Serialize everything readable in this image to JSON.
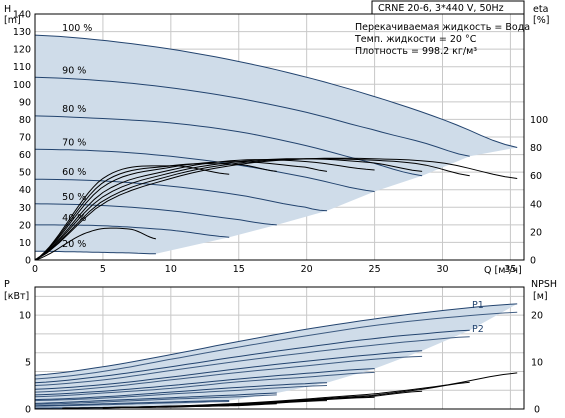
{
  "chart_data": [
    {
      "type": "line",
      "title": "CRNE 20-6, 3*440 V, 50Hz",
      "annotations": [
        "Перекачиваемая жидкость = Вода",
        "Темп. жидкости = 20 °C",
        "Плотность = 998.2 кг/м³"
      ],
      "xlabel": "Q [м³/ч]",
      "xlim": [
        0,
        36
      ],
      "xticks": [
        0,
        5,
        10,
        15,
        20,
        25,
        30,
        35
      ],
      "y_left": {
        "label_top": "H",
        "label_bottom": "[m]",
        "lim": [
          0,
          140
        ],
        "ticks": [
          0,
          10,
          20,
          30,
          40,
          50,
          60,
          70,
          80,
          90,
          100,
          110,
          120,
          130,
          140
        ]
      },
      "y_right": {
        "label_top": "eta",
        "label_bottom": "[%]",
        "lim": [
          0,
          175
        ],
        "ticks": [
          0,
          20,
          40,
          60,
          80,
          100
        ]
      },
      "grid": true,
      "speed_labels": [
        "100 %",
        "90 %",
        "80 %",
        "70 %",
        "60 %",
        "50 %",
        "40 %",
        "20 %"
      ],
      "head_curves": [
        {
          "speed": 100,
          "x": [
            0,
            5,
            10,
            15,
            20,
            25,
            30,
            35.5
          ],
          "y": [
            128,
            125,
            120,
            113,
            104,
            93,
            80,
            64
          ]
        },
        {
          "speed": 90,
          "x": [
            0,
            5,
            10,
            15,
            20,
            25,
            28.5,
            32
          ],
          "y": [
            104,
            102,
            98,
            92,
            84,
            74,
            67,
            59
          ]
        },
        {
          "speed": 80,
          "x": [
            0,
            5,
            10,
            15,
            20,
            25,
            28.5
          ],
          "y": [
            82,
            80.5,
            78,
            73,
            65,
            55,
            48
          ]
        },
        {
          "speed": 70,
          "x": [
            0,
            5,
            10,
            15,
            20,
            25
          ],
          "y": [
            63,
            62,
            59,
            54,
            47,
            39
          ]
        },
        {
          "speed": 60,
          "x": [
            0,
            5,
            10,
            15,
            20,
            21.5
          ],
          "y": [
            46,
            45,
            42,
            37,
            30,
            28
          ]
        },
        {
          "speed": 50,
          "x": [
            0,
            5,
            10,
            15,
            17.8
          ],
          "y": [
            32,
            31,
            28,
            23,
            20
          ]
        },
        {
          "speed": 40,
          "x": [
            0,
            5,
            10,
            14.3
          ],
          "y": [
            20,
            19.5,
            17,
            13
          ]
        },
        {
          "speed": 20,
          "x": [
            0,
            4,
            7,
            8.9
          ],
          "y": [
            5,
            4.5,
            4,
            3.5
          ]
        }
      ],
      "efficiency_curves": [
        {
          "x": [
            0,
            5,
            10,
            15,
            20,
            25,
            30,
            35.5
          ],
          "y": [
            0,
            40,
            58,
            68,
            72,
            72,
            69,
            58
          ]
        },
        {
          "x": [
            0,
            5,
            10,
            15,
            20,
            25,
            28.5,
            32
          ],
          "y": [
            0,
            42,
            60,
            69,
            72,
            71,
            68,
            60
          ]
        },
        {
          "x": [
            0,
            5,
            10,
            15,
            20,
            25,
            28.5
          ],
          "y": [
            0,
            45,
            62,
            70,
            72,
            69,
            63
          ]
        },
        {
          "x": [
            0,
            5,
            10,
            15,
            20,
            25
          ],
          "y": [
            0,
            48,
            64,
            71,
            70,
            64
          ]
        },
        {
          "x": [
            0,
            5,
            10,
            15,
            20,
            21.5
          ],
          "y": [
            0,
            52,
            66,
            70,
            66,
            63
          ]
        },
        {
          "x": [
            0,
            5,
            10,
            15,
            17.8
          ],
          "y": [
            0,
            55,
            67,
            68,
            63
          ]
        },
        {
          "x": [
            0,
            5,
            10,
            14.3
          ],
          "y": [
            0,
            58,
            67,
            61
          ]
        },
        {
          "x": [
            0,
            4,
            7,
            8.9
          ],
          "y": [
            0,
            20,
            22,
            15
          ]
        }
      ]
    },
    {
      "type": "line",
      "xlim": [
        0,
        36
      ],
      "xticks": [
        0,
        5,
        10,
        15,
        20,
        25,
        30,
        35
      ],
      "y_left": {
        "label_top": "P",
        "label_bottom": "[кВт]",
        "lim": [
          0,
          13
        ],
        "ticks": [
          0,
          5,
          10
        ]
      },
      "y_right": {
        "label_top": "NPSH",
        "label_bottom": "[м]",
        "lim": [
          0,
          26
        ],
        "ticks": [
          0,
          10,
          20
        ]
      },
      "grid": true,
      "series_labels": [
        "P1",
        "P2"
      ],
      "power_p1": [
        {
          "x": [
            0,
            5,
            10,
            15,
            20,
            25,
            30,
            35.5
          ],
          "y": [
            3.6,
            4.5,
            5.8,
            7.2,
            8.5,
            9.6,
            10.5,
            11.2
          ]
        },
        {
          "x": [
            0,
            5,
            10,
            15,
            20,
            25,
            28.5,
            32
          ],
          "y": [
            2.8,
            3.5,
            4.5,
            5.6,
            6.6,
            7.5,
            8.0,
            8.4
          ]
        },
        {
          "x": [
            0,
            5,
            10,
            15,
            20,
            25,
            28.5
          ],
          "y": [
            2.1,
            2.6,
            3.4,
            4.3,
            5.1,
            5.8,
            6.2
          ]
        },
        {
          "x": [
            0,
            5,
            10,
            15,
            20,
            25
          ],
          "y": [
            1.5,
            1.9,
            2.5,
            3.2,
            3.8,
            4.3
          ]
        },
        {
          "x": [
            0,
            5,
            10,
            15,
            20,
            21.5
          ],
          "y": [
            1.0,
            1.3,
            1.8,
            2.3,
            2.7,
            2.8
          ]
        },
        {
          "x": [
            0,
            5,
            10,
            15,
            17.8
          ],
          "y": [
            0.6,
            0.9,
            1.2,
            1.5,
            1.7
          ]
        },
        {
          "x": [
            0,
            5,
            10,
            14.3
          ],
          "y": [
            0.35,
            0.55,
            0.75,
            0.9
          ]
        },
        {
          "x": [
            0,
            4,
            7,
            8.9
          ],
          "y": [
            0.1,
            0.15,
            0.2,
            0.25
          ]
        }
      ],
      "power_p2": [
        {
          "x": [
            0,
            5,
            10,
            15,
            20,
            25,
            30,
            35.5
          ],
          "y": [
            3.2,
            4.0,
            5.3,
            6.6,
            7.8,
            8.9,
            9.7,
            10.3
          ]
        },
        {
          "x": [
            0,
            5,
            10,
            15,
            20,
            25,
            28.5,
            32
          ],
          "y": [
            2.5,
            3.1,
            4.1,
            5.1,
            6.0,
            6.8,
            7.3,
            7.7
          ]
        },
        {
          "x": [
            0,
            5,
            10,
            15,
            20,
            25,
            28.5
          ],
          "y": [
            1.8,
            2.3,
            3.1,
            3.9,
            4.6,
            5.3,
            5.6
          ]
        },
        {
          "x": [
            0,
            5,
            10,
            15,
            20,
            25
          ],
          "y": [
            1.3,
            1.7,
            2.2,
            2.9,
            3.4,
            3.9
          ]
        },
        {
          "x": [
            0,
            5,
            10,
            15,
            20,
            21.5
          ],
          "y": [
            0.9,
            1.15,
            1.6,
            2.0,
            2.4,
            2.5
          ]
        },
        {
          "x": [
            0,
            5,
            10,
            15,
            17.8
          ],
          "y": [
            0.5,
            0.75,
            1.05,
            1.3,
            1.5
          ]
        },
        {
          "x": [
            0,
            5,
            10,
            14.3
          ],
          "y": [
            0.3,
            0.45,
            0.65,
            0.8
          ]
        },
        {
          "x": [
            0,
            4,
            7,
            8.9
          ],
          "y": [
            0.08,
            0.12,
            0.17,
            0.2
          ]
        }
      ],
      "npsh_curves": [
        {
          "x": [
            5,
            15,
            25,
            30,
            35.5
          ],
          "y": [
            0.3,
            1.2,
            3.2,
            5.0,
            7.7
          ]
        },
        {
          "x": [
            5,
            15,
            25,
            28.5,
            32
          ],
          "y": [
            0.3,
            1.1,
            2.9,
            4.2,
            5.7
          ]
        },
        {
          "x": [
            5,
            15,
            25,
            28.5
          ],
          "y": [
            0.3,
            1.0,
            2.7,
            3.8
          ]
        },
        {
          "x": [
            5,
            15,
            25
          ],
          "y": [
            0.3,
            0.9,
            2.5
          ]
        },
        {
          "x": [
            5,
            15,
            21.5
          ],
          "y": [
            0.3,
            0.8,
            1.8
          ]
        },
        {
          "x": [
            5,
            15,
            17.8
          ],
          "y": [
            0.3,
            0.7,
            1.1
          ]
        },
        {
          "x": [
            5,
            10,
            14.3
          ],
          "y": [
            0.3,
            0.4,
            0.7
          ]
        },
        {
          "x": [
            2,
            6,
            8.9
          ],
          "y": [
            0.2,
            0.3,
            0.4
          ]
        }
      ]
    }
  ],
  "colors": {
    "region": "#cfdce9",
    "curve": "#23446f",
    "efficiency": "#000000",
    "grid": "#c8c8c8"
  }
}
